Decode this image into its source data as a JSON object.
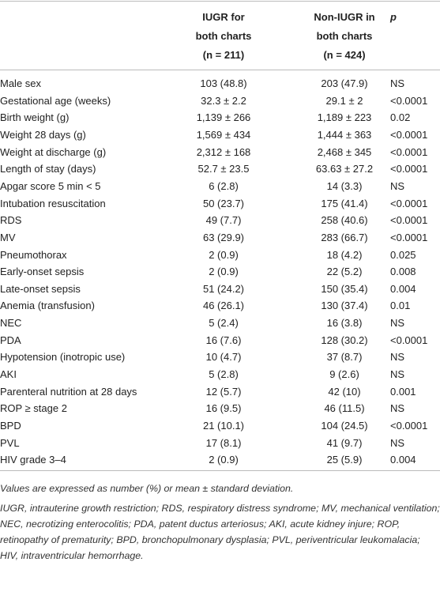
{
  "table": {
    "header": [
      [
        "IUGR for",
        "both charts",
        "(n = 211)"
      ],
      [
        "Non-IUGR in",
        "both charts",
        "(n = 424)"
      ],
      [
        "p"
      ]
    ],
    "rows": [
      [
        "Male sex",
        "103 (48.8)",
        "203 (47.9)",
        "NS"
      ],
      [
        "Gestational age (weeks)",
        "32.3 ± 2.2",
        "29.1 ± 2",
        "<0.0001"
      ],
      [
        "Birth weight (g)",
        "1,139 ± 266",
        "1,189 ± 223",
        "0.02"
      ],
      [
        "Weight 28 days (g)",
        "1,569 ± 434",
        "1,444 ± 363",
        "<0.0001"
      ],
      [
        "Weight at discharge (g)",
        "2,312 ± 168",
        "2,468 ± 345",
        "<0.0001"
      ],
      [
        "Length of stay (days)",
        "52.7 ± 23.5",
        "63.63 ± 27.2",
        "<0.0001"
      ],
      [
        "Apgar score 5 min < 5",
        "6 (2.8)",
        "14 (3.3)",
        "NS"
      ],
      [
        "Intubation resuscitation",
        "50 (23.7)",
        "175 (41.4)",
        "<0.0001"
      ],
      [
        "RDS",
        "49 (7.7)",
        "258 (40.6)",
        "<0.0001"
      ],
      [
        "MV",
        "63 (29.9)",
        "283 (66.7)",
        "<0.0001"
      ],
      [
        "Pneumothorax",
        "2 (0.9)",
        "18 (4.2)",
        "0.025"
      ],
      [
        "Early-onset sepsis",
        "2 (0.9)",
        "22 (5.2)",
        "0.008"
      ],
      [
        "Late-onset sepsis",
        "51 (24.2)",
        "150 (35.4)",
        "0.004"
      ],
      [
        "Anemia (transfusion)",
        "46 (26.1)",
        "130 (37.4)",
        "0.01"
      ],
      [
        "NEC",
        "5 (2.4)",
        "16 (3.8)",
        "NS"
      ],
      [
        "PDA",
        "16 (7.6)",
        "128 (30.2)",
        "<0.0001"
      ],
      [
        "Hypotension (inotropic use)",
        "10 (4.7)",
        "37 (8.7)",
        "NS"
      ],
      [
        "AKI",
        "5 (2.8)",
        "9 (2.6)",
        "NS"
      ],
      [
        "Parenteral nutrition at 28 days",
        "12 (5.7)",
        "42 (10)",
        "0.001"
      ],
      [
        "ROP ≥ stage 2",
        "16 (9.5)",
        "46 (11.5)",
        "NS"
      ],
      [
        "BPD",
        "21 (10.1)",
        "104 (24.5)",
        "<0.0001"
      ],
      [
        "PVL",
        "17 (8.1)",
        "41 (9.7)",
        "NS"
      ],
      [
        "HIV grade 3–4",
        "2 (0.9)",
        "25 (5.9)",
        "0.004"
      ]
    ],
    "footnotes": [
      "Values are expressed as number (%) or mean ± standard deviation.",
      "IUGR, intrauterine growth restriction; RDS, respiratory distress syndrome; MV, mechanical ventilation; NEC, necrotizing enterocolitis; PDA, patent ductus arteriosus; AKI, acute kidney injure; ROP, retinopathy of prematurity; BPD, bronchopulmonary dysplasia; PVL, periventricular leukomalacia; HIV, intraventricular hemorrhage."
    ]
  }
}
